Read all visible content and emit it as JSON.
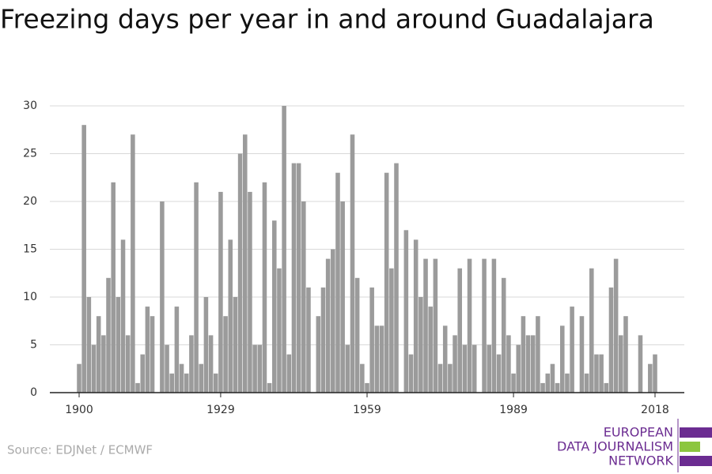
{
  "chart_data": {
    "type": "bar",
    "title": "Freezing days per year in and around Guadalajara",
    "source": "Source: EDJNet / ECMWF",
    "logo": [
      "EUROPEAN",
      "DATA JOURNALISM",
      "NETWORK"
    ],
    "color": "#9b9b9b",
    "grid": true,
    "xlim": [
      1894,
      2024
    ],
    "xticks": [
      1900,
      1929,
      1959,
      1989,
      2018
    ],
    "ylim": [
      0,
      30
    ],
    "yticks": [
      0,
      5,
      10,
      15,
      20,
      25,
      30
    ],
    "x": [
      1900,
      1901,
      1902,
      1903,
      1904,
      1905,
      1906,
      1907,
      1908,
      1909,
      1910,
      1911,
      1912,
      1913,
      1914,
      1915,
      1916,
      1917,
      1918,
      1919,
      1920,
      1921,
      1922,
      1923,
      1924,
      1925,
      1926,
      1927,
      1928,
      1929,
      1930,
      1931,
      1932,
      1933,
      1934,
      1935,
      1936,
      1937,
      1938,
      1939,
      1940,
      1941,
      1942,
      1943,
      1944,
      1945,
      1946,
      1947,
      1948,
      1949,
      1950,
      1951,
      1952,
      1953,
      1954,
      1955,
      1956,
      1957,
      1958,
      1959,
      1960,
      1961,
      1962,
      1963,
      1964,
      1965,
      1966,
      1967,
      1968,
      1969,
      1970,
      1971,
      1972,
      1973,
      1974,
      1975,
      1976,
      1977,
      1978,
      1979,
      1980,
      1981,
      1982,
      1983,
      1984,
      1985,
      1986,
      1987,
      1988,
      1989,
      1990,
      1991,
      1992,
      1993,
      1994,
      1995,
      1996,
      1997,
      1998,
      1999,
      2000,
      2001,
      2002,
      2003,
      2004,
      2005,
      2006,
      2007,
      2008,
      2009,
      2010,
      2011,
      2012,
      2013,
      2014,
      2015,
      2016,
      2017,
      2018
    ],
    "values": [
      3,
      28,
      10,
      5,
      8,
      6,
      12,
      22,
      10,
      16,
      6,
      27,
      1,
      4,
      9,
      8,
      0,
      20,
      5,
      2,
      9,
      3,
      2,
      6,
      22,
      3,
      10,
      6,
      2,
      21,
      8,
      16,
      10,
      25,
      27,
      21,
      5,
      5,
      22,
      1,
      18,
      13,
      30,
      4,
      24,
      24,
      20,
      11,
      0,
      8,
      11,
      14,
      15,
      23,
      20,
      5,
      27,
      12,
      3,
      1,
      11,
      7,
      7,
      23,
      13,
      24,
      0,
      17,
      4,
      16,
      10,
      14,
      9,
      14,
      3,
      7,
      3,
      6,
      13,
      5,
      14,
      5,
      0,
      14,
      5,
      14,
      4,
      12,
      6,
      2,
      5,
      8,
      6,
      6,
      8,
      1,
      2,
      3,
      1,
      7,
      2,
      9,
      0,
      8,
      2,
      13,
      4,
      4,
      1,
      11,
      14,
      6,
      8,
      0,
      0,
      6,
      0,
      3,
      4
    ]
  }
}
